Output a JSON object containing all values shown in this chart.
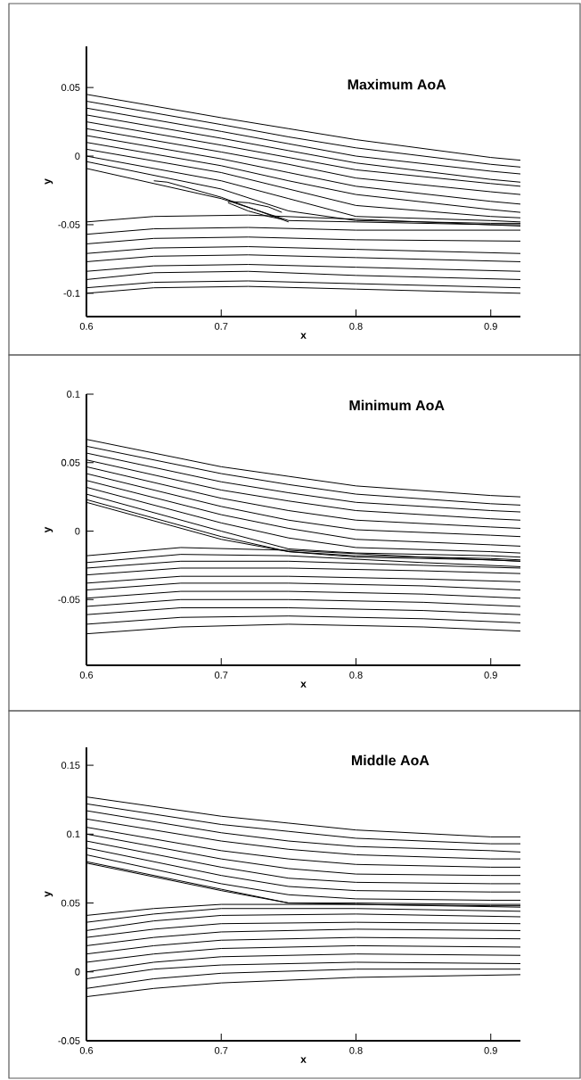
{
  "chart_data": [
    {
      "type": "line",
      "title": "Maximum AoA",
      "xlabel": "x",
      "ylabel": "y",
      "xlim": [
        0.6,
        0.922
      ],
      "ylim": [
        -0.117,
        0.08
      ],
      "xticks": [
        0.6,
        0.7,
        0.8,
        0.9
      ],
      "yticks": [
        -0.1,
        -0.05,
        0,
        0.05
      ],
      "series": [
        {
          "color": "#000000",
          "x": [
            0.6,
            0.7,
            0.75,
            0.8,
            0.9,
            0.922
          ],
          "values": [
            0.045,
            0.028,
            0.02,
            0.012,
            -0.001,
            -0.003
          ]
        },
        {
          "color": "#000000",
          "x": [
            0.6,
            0.7,
            0.75,
            0.8,
            0.9,
            0.922
          ],
          "values": [
            0.04,
            0.023,
            0.014,
            0.006,
            -0.006,
            -0.008
          ]
        },
        {
          "color": "#000000",
          "x": [
            0.6,
            0.7,
            0.75,
            0.8,
            0.9,
            0.922
          ],
          "values": [
            0.035,
            0.018,
            0.009,
            0.0,
            -0.011,
            -0.013
          ]
        },
        {
          "color": "#000000",
          "x": [
            0.6,
            0.7,
            0.75,
            0.8,
            0.9,
            0.922
          ],
          "values": [
            0.03,
            0.013,
            0.004,
            -0.005,
            -0.017,
            -0.019
          ]
        },
        {
          "color": "#000000",
          "x": [
            0.6,
            0.7,
            0.75,
            0.8,
            0.9,
            0.922
          ],
          "values": [
            0.025,
            0.008,
            -0.001,
            -0.01,
            -0.02,
            -0.022
          ]
        },
        {
          "color": "#000000",
          "x": [
            0.6,
            0.7,
            0.75,
            0.8,
            0.9,
            0.922
          ],
          "values": [
            0.02,
            0.003,
            -0.006,
            -0.016,
            -0.026,
            -0.028
          ]
        },
        {
          "color": "#000000",
          "x": [
            0.6,
            0.7,
            0.75,
            0.8,
            0.9,
            0.922
          ],
          "values": [
            0.015,
            -0.002,
            -0.012,
            -0.022,
            -0.033,
            -0.035
          ]
        },
        {
          "color": "#000000",
          "x": [
            0.6,
            0.7,
            0.75,
            0.8,
            0.9,
            0.922
          ],
          "values": [
            0.01,
            -0.007,
            -0.018,
            -0.028,
            -0.039,
            -0.041
          ]
        },
        {
          "color": "#000000",
          "x": [
            0.6,
            0.7,
            0.75,
            0.8,
            0.9,
            0.922
          ],
          "values": [
            0.005,
            -0.012,
            -0.024,
            -0.036,
            -0.044,
            -0.045
          ]
        },
        {
          "color": "#000000",
          "x": [
            0.6,
            0.7,
            0.75,
            0.8,
            0.9,
            0.922
          ],
          "values": [
            0.0,
            -0.018,
            -0.031,
            -0.044,
            -0.047,
            -0.048
          ]
        },
        {
          "color": "#000000",
          "x": [
            0.6,
            0.7,
            0.75,
            0.8,
            0.9,
            0.922
          ],
          "values": [
            -0.004,
            -0.024,
            -0.04,
            -0.047,
            -0.049,
            -0.049
          ]
        },
        {
          "color": "#000000",
          "x": [
            0.6,
            0.7,
            0.75,
            0.8,
            0.9,
            0.922
          ],
          "values": [
            -0.009,
            -0.031,
            -0.047,
            -0.048,
            -0.05,
            -0.05
          ]
        },
        {
          "color": "#000000",
          "x": [
            0.65,
            0.66,
            0.7,
            0.75
          ],
          "values": [
            -0.018,
            -0.019,
            -0.03,
            -0.048
          ]
        },
        {
          "color": "#000000",
          "x": [
            0.705,
            0.72,
            0.735,
            0.745
          ],
          "values": [
            -0.033,
            -0.034,
            -0.037,
            -0.041
          ]
        },
        {
          "color": "#000000",
          "x": [
            0.705,
            0.72,
            0.735,
            0.745
          ],
          "values": [
            -0.034,
            -0.04,
            -0.044,
            -0.046
          ]
        },
        {
          "color": "#000000",
          "x": [
            0.6,
            0.65,
            0.72,
            0.8,
            0.922
          ],
          "values": [
            -0.048,
            -0.044,
            -0.043,
            -0.046,
            -0.051
          ]
        },
        {
          "color": "#000000",
          "x": [
            0.6,
            0.65,
            0.72,
            0.8,
            0.922
          ],
          "values": [
            -0.057,
            -0.053,
            -0.052,
            -0.054,
            -0.054
          ]
        },
        {
          "color": "#000000",
          "x": [
            0.6,
            0.65,
            0.72,
            0.8,
            0.922
          ],
          "values": [
            -0.064,
            -0.06,
            -0.059,
            -0.061,
            -0.062
          ]
        },
        {
          "color": "#000000",
          "x": [
            0.6,
            0.65,
            0.72,
            0.8,
            0.922
          ],
          "values": [
            -0.071,
            -0.067,
            -0.066,
            -0.068,
            -0.071
          ]
        },
        {
          "color": "#000000",
          "x": [
            0.6,
            0.65,
            0.72,
            0.8,
            0.922
          ],
          "values": [
            -0.077,
            -0.073,
            -0.072,
            -0.074,
            -0.077
          ]
        },
        {
          "color": "#000000",
          "x": [
            0.6,
            0.65,
            0.72,
            0.8,
            0.922
          ],
          "values": [
            -0.084,
            -0.08,
            -0.079,
            -0.081,
            -0.084
          ]
        },
        {
          "color": "#000000",
          "x": [
            0.6,
            0.65,
            0.72,
            0.8,
            0.922
          ],
          "values": [
            -0.09,
            -0.085,
            -0.084,
            -0.087,
            -0.09
          ]
        },
        {
          "color": "#000000",
          "x": [
            0.6,
            0.65,
            0.72,
            0.8,
            0.922
          ],
          "values": [
            -0.096,
            -0.092,
            -0.091,
            -0.093,
            -0.096
          ]
        },
        {
          "color": "#000000",
          "x": [
            0.6,
            0.65,
            0.72,
            0.8,
            0.922
          ],
          "values": [
            -0.1,
            -0.096,
            -0.095,
            -0.097,
            -0.1
          ]
        }
      ]
    },
    {
      "type": "line",
      "title": "Minimum AoA",
      "xlabel": "x",
      "ylabel": "y",
      "xlim": [
        0.6,
        0.922
      ],
      "ylim": [
        -0.098,
        0.1
      ],
      "xticks": [
        0.6,
        0.7,
        0.8,
        0.9
      ],
      "yticks": [
        -0.05,
        0,
        0.05,
        0.1
      ],
      "series": [
        {
          "color": "#000000",
          "x": [
            0.6,
            0.7,
            0.75,
            0.8,
            0.9,
            0.922
          ],
          "values": [
            0.067,
            0.047,
            0.04,
            0.033,
            0.026,
            0.025
          ]
        },
        {
          "color": "#000000",
          "x": [
            0.6,
            0.7,
            0.75,
            0.8,
            0.9,
            0.922
          ],
          "values": [
            0.062,
            0.042,
            0.034,
            0.027,
            0.02,
            0.019
          ]
        },
        {
          "color": "#000000",
          "x": [
            0.6,
            0.7,
            0.75,
            0.8,
            0.9,
            0.922
          ],
          "values": [
            0.057,
            0.036,
            0.028,
            0.021,
            0.015,
            0.014
          ]
        },
        {
          "color": "#000000",
          "x": [
            0.6,
            0.7,
            0.75,
            0.8,
            0.9,
            0.922
          ],
          "values": [
            0.052,
            0.03,
            0.022,
            0.015,
            0.009,
            0.008
          ]
        },
        {
          "color": "#000000",
          "x": [
            0.6,
            0.7,
            0.75,
            0.8,
            0.9,
            0.922
          ],
          "values": [
            0.047,
            0.024,
            0.015,
            0.008,
            0.003,
            0.002
          ]
        },
        {
          "color": "#000000",
          "x": [
            0.6,
            0.7,
            0.75,
            0.8,
            0.9,
            0.922
          ],
          "values": [
            0.042,
            0.018,
            0.008,
            0.001,
            -0.003,
            -0.004
          ]
        },
        {
          "color": "#000000",
          "x": [
            0.6,
            0.7,
            0.75,
            0.8,
            0.9,
            0.922
          ],
          "values": [
            0.037,
            0.012,
            0.002,
            -0.006,
            -0.01,
            -0.011
          ]
        },
        {
          "color": "#000000",
          "x": [
            0.6,
            0.7,
            0.75,
            0.8,
            0.9,
            0.922
          ],
          "values": [
            0.032,
            0.006,
            -0.005,
            -0.012,
            -0.015,
            -0.016
          ]
        },
        {
          "color": "#000000",
          "x": [
            0.6,
            0.7,
            0.75,
            0.8,
            0.9,
            0.922
          ],
          "values": [
            0.027,
            0.0,
            -0.013,
            -0.016,
            -0.018,
            -0.019
          ]
        },
        {
          "color": "#000000",
          "x": [
            0.6,
            0.7,
            0.75,
            0.8,
            0.9,
            0.922
          ],
          "values": [
            0.023,
            -0.004,
            -0.015,
            -0.018,
            -0.02,
            -0.021
          ]
        },
        {
          "color": "#000000",
          "x": [
            0.6,
            0.7,
            0.75,
            0.8,
            0.9,
            0.922
          ],
          "values": [
            0.021,
            -0.006,
            -0.015,
            -0.019,
            -0.021,
            -0.022
          ]
        },
        {
          "color": "#000000",
          "x": [
            0.6,
            0.67,
            0.75,
            0.85,
            0.922
          ],
          "values": [
            -0.018,
            -0.012,
            -0.014,
            -0.019,
            -0.022
          ]
        },
        {
          "color": "#000000",
          "x": [
            0.6,
            0.67,
            0.75,
            0.85,
            0.922
          ],
          "values": [
            -0.023,
            -0.017,
            -0.018,
            -0.023,
            -0.026
          ]
        },
        {
          "color": "#000000",
          "x": [
            0.6,
            0.67,
            0.75,
            0.85,
            0.922
          ],
          "values": [
            -0.027,
            -0.022,
            -0.022,
            -0.025,
            -0.027
          ]
        },
        {
          "color": "#000000",
          "x": [
            0.6,
            0.67,
            0.75,
            0.85,
            0.922
          ],
          "values": [
            -0.032,
            -0.027,
            -0.027,
            -0.029,
            -0.031
          ]
        },
        {
          "color": "#000000",
          "x": [
            0.6,
            0.67,
            0.75,
            0.85,
            0.922
          ],
          "values": [
            -0.038,
            -0.033,
            -0.033,
            -0.035,
            -0.037
          ]
        },
        {
          "color": "#000000",
          "x": [
            0.6,
            0.67,
            0.75,
            0.85,
            0.922
          ],
          "values": [
            -0.043,
            -0.038,
            -0.038,
            -0.04,
            -0.043
          ]
        },
        {
          "color": "#000000",
          "x": [
            0.6,
            0.67,
            0.75,
            0.85,
            0.922
          ],
          "values": [
            -0.049,
            -0.044,
            -0.044,
            -0.046,
            -0.049
          ]
        },
        {
          "color": "#000000",
          "x": [
            0.6,
            0.67,
            0.75,
            0.85,
            0.922
          ],
          "values": [
            -0.055,
            -0.05,
            -0.05,
            -0.052,
            -0.055
          ]
        },
        {
          "color": "#000000",
          "x": [
            0.6,
            0.67,
            0.75,
            0.85,
            0.922
          ],
          "values": [
            -0.061,
            -0.056,
            -0.056,
            -0.058,
            -0.061
          ]
        },
        {
          "color": "#000000",
          "x": [
            0.6,
            0.67,
            0.75,
            0.85,
            0.922
          ],
          "values": [
            -0.068,
            -0.063,
            -0.062,
            -0.064,
            -0.067
          ]
        },
        {
          "color": "#000000",
          "x": [
            0.6,
            0.67,
            0.75,
            0.85,
            0.922
          ],
          "values": [
            -0.075,
            -0.07,
            -0.068,
            -0.07,
            -0.073
          ]
        }
      ]
    },
    {
      "type": "line",
      "title": "Middle AoA",
      "xlabel": "x",
      "ylabel": "y",
      "xlim": [
        0.6,
        0.922
      ],
      "ylim": [
        -0.05,
        0.163
      ],
      "xticks": [
        0.6,
        0.7,
        0.8,
        0.9
      ],
      "yticks": [
        -0.05,
        0,
        0.05,
        0.1,
        0.15
      ],
      "series": [
        {
          "color": "#000000",
          "x": [
            0.6,
            0.7,
            0.75,
            0.8,
            0.9,
            0.922
          ],
          "values": [
            0.127,
            0.113,
            0.108,
            0.103,
            0.098,
            0.098
          ]
        },
        {
          "color": "#000000",
          "x": [
            0.6,
            0.7,
            0.75,
            0.8,
            0.9,
            0.922
          ],
          "values": [
            0.122,
            0.107,
            0.102,
            0.097,
            0.093,
            0.093
          ]
        },
        {
          "color": "#000000",
          "x": [
            0.6,
            0.7,
            0.75,
            0.8,
            0.9,
            0.922
          ],
          "values": [
            0.117,
            0.101,
            0.095,
            0.091,
            0.088,
            0.087
          ]
        },
        {
          "color": "#000000",
          "x": [
            0.6,
            0.7,
            0.75,
            0.8,
            0.9,
            0.922
          ],
          "values": [
            0.111,
            0.095,
            0.089,
            0.085,
            0.082,
            0.082
          ]
        },
        {
          "color": "#000000",
          "x": [
            0.6,
            0.7,
            0.75,
            0.8,
            0.9,
            0.922
          ],
          "values": [
            0.105,
            0.088,
            0.082,
            0.078,
            0.076,
            0.076
          ]
        },
        {
          "color": "#000000",
          "x": [
            0.6,
            0.7,
            0.75,
            0.8,
            0.9,
            0.922
          ],
          "values": [
            0.1,
            0.082,
            0.075,
            0.071,
            0.07,
            0.07
          ]
        },
        {
          "color": "#000000",
          "x": [
            0.6,
            0.7,
            0.75,
            0.8,
            0.9,
            0.922
          ],
          "values": [
            0.095,
            0.076,
            0.068,
            0.065,
            0.064,
            0.064
          ]
        },
        {
          "color": "#000000",
          "x": [
            0.6,
            0.7,
            0.75,
            0.8,
            0.9,
            0.922
          ],
          "values": [
            0.09,
            0.07,
            0.062,
            0.059,
            0.058,
            0.058
          ]
        },
        {
          "color": "#000000",
          "x": [
            0.6,
            0.7,
            0.75,
            0.8,
            0.9,
            0.922
          ],
          "values": [
            0.085,
            0.064,
            0.056,
            0.053,
            0.052,
            0.052
          ]
        },
        {
          "color": "#000000",
          "x": [
            0.6,
            0.7,
            0.75,
            0.8,
            0.9,
            0.922
          ],
          "values": [
            0.08,
            0.06,
            0.05,
            0.05,
            0.049,
            0.049
          ]
        },
        {
          "color": "#000000",
          "x": [
            0.6,
            0.7,
            0.75,
            0.8,
            0.9,
            0.922
          ],
          "values": [
            0.079,
            0.059,
            0.05,
            0.049,
            0.048,
            0.048
          ]
        },
        {
          "color": "#000000",
          "x": [
            0.6,
            0.65,
            0.7,
            0.8,
            0.922
          ],
          "values": [
            0.041,
            0.046,
            0.049,
            0.049,
            0.047
          ]
        },
        {
          "color": "#000000",
          "x": [
            0.6,
            0.65,
            0.7,
            0.8,
            0.922
          ],
          "values": [
            0.036,
            0.042,
            0.046,
            0.046,
            0.044
          ]
        },
        {
          "color": "#000000",
          "x": [
            0.6,
            0.65,
            0.7,
            0.8,
            0.922
          ],
          "values": [
            0.03,
            0.037,
            0.041,
            0.042,
            0.04
          ]
        },
        {
          "color": "#000000",
          "x": [
            0.6,
            0.65,
            0.7,
            0.8,
            0.922
          ],
          "values": [
            0.025,
            0.031,
            0.035,
            0.036,
            0.035
          ]
        },
        {
          "color": "#000000",
          "x": [
            0.6,
            0.65,
            0.7,
            0.8,
            0.922
          ],
          "values": [
            0.019,
            0.025,
            0.029,
            0.031,
            0.03
          ]
        },
        {
          "color": "#000000",
          "x": [
            0.6,
            0.65,
            0.7,
            0.8,
            0.922
          ],
          "values": [
            0.013,
            0.019,
            0.023,
            0.025,
            0.024
          ]
        },
        {
          "color": "#000000",
          "x": [
            0.6,
            0.65,
            0.7,
            0.8,
            0.922
          ],
          "values": [
            0.007,
            0.013,
            0.017,
            0.019,
            0.018
          ]
        },
        {
          "color": "#000000",
          "x": [
            0.6,
            0.65,
            0.7,
            0.8,
            0.922
          ],
          "values": [
            0.0,
            0.007,
            0.011,
            0.013,
            0.012
          ]
        },
        {
          "color": "#000000",
          "x": [
            0.6,
            0.65,
            0.7,
            0.8,
            0.922
          ],
          "values": [
            -0.005,
            0.002,
            0.005,
            0.007,
            0.006
          ]
        },
        {
          "color": "#000000",
          "x": [
            0.6,
            0.65,
            0.7,
            0.8,
            0.922
          ],
          "values": [
            -0.012,
            -0.005,
            -0.001,
            0.002,
            0.002
          ]
        },
        {
          "color": "#000000",
          "x": [
            0.6,
            0.65,
            0.7,
            0.8,
            0.922
          ],
          "values": [
            -0.018,
            -0.012,
            -0.008,
            -0.004,
            -0.002
          ]
        }
      ]
    }
  ]
}
